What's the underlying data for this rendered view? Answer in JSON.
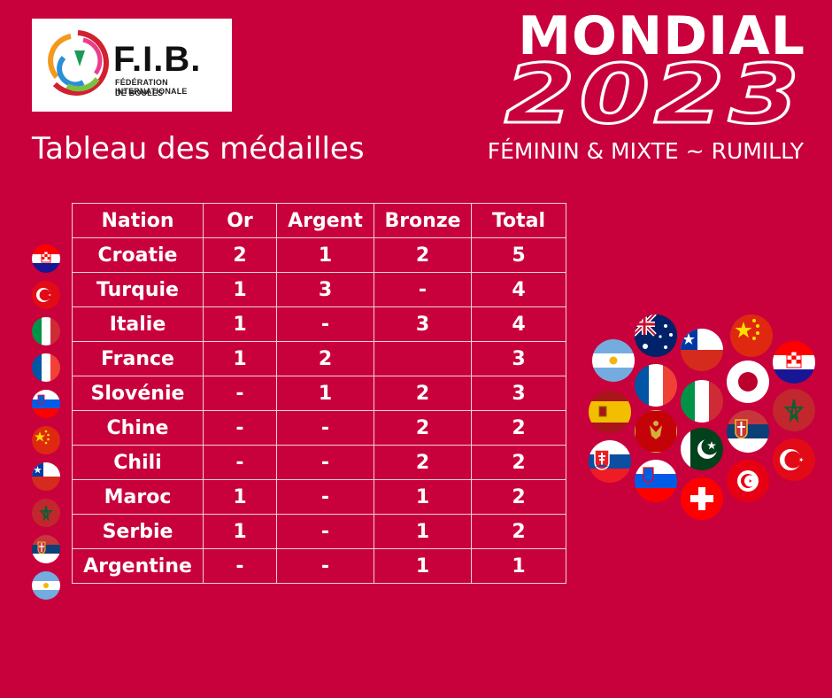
{
  "logo": {
    "name": "F.I.B.",
    "line1": "FÉDÉRATION INTERNATIONALE",
    "line2": "DE BOULES"
  },
  "subtitle": "Tableau des médailles",
  "event": {
    "name": "MONDIAL",
    "year": "2023",
    "tagline": "FÉMININ & MIXTE ~ RUMILLY"
  },
  "table": {
    "headers": [
      "Nation",
      "Or",
      "Argent",
      "Bronze",
      "Total"
    ],
    "rows": [
      {
        "nation": "Croatie",
        "gold": "2",
        "silver": "1",
        "bronze": "2",
        "total": "5",
        "flag": "croatia-flag-icon"
      },
      {
        "nation": "Turquie",
        "gold": "1",
        "silver": "3",
        "bronze": "-",
        "total": "4",
        "flag": "turkey-flag-icon"
      },
      {
        "nation": "Italie",
        "gold": "1",
        "silver": "-",
        "bronze": "3",
        "total": "4",
        "flag": "italy-flag-icon"
      },
      {
        "nation": "France",
        "gold": "1",
        "silver": "2",
        "bronze": "",
        "total": "3",
        "flag": "france-flag-icon"
      },
      {
        "nation": "Slovénie",
        "gold": "-",
        "silver": "1",
        "bronze": "2",
        "total": "3",
        "flag": "slovenia-flag-icon"
      },
      {
        "nation": "Chine",
        "gold": "-",
        "silver": "-",
        "bronze": "2",
        "total": "2",
        "flag": "china-flag-icon"
      },
      {
        "nation": "Chili",
        "gold": "-",
        "silver": "-",
        "bronze": "2",
        "total": "2",
        "flag": "chile-flag-icon"
      },
      {
        "nation": "Maroc",
        "gold": "1",
        "silver": "-",
        "bronze": "1",
        "total": "2",
        "flag": "morocco-flag-icon"
      },
      {
        "nation": "Serbie",
        "gold": "1",
        "silver": "-",
        "bronze": "1",
        "total": "2",
        "flag": "serbia-flag-icon"
      },
      {
        "nation": "Argentine",
        "gold": "-",
        "silver": "-",
        "bronze": "1",
        "total": "1",
        "flag": "argentina-flag-icon"
      }
    ]
  },
  "colors": {
    "background": "#c8003c",
    "text": "#ffffff",
    "table_border": "#f2d2da"
  }
}
